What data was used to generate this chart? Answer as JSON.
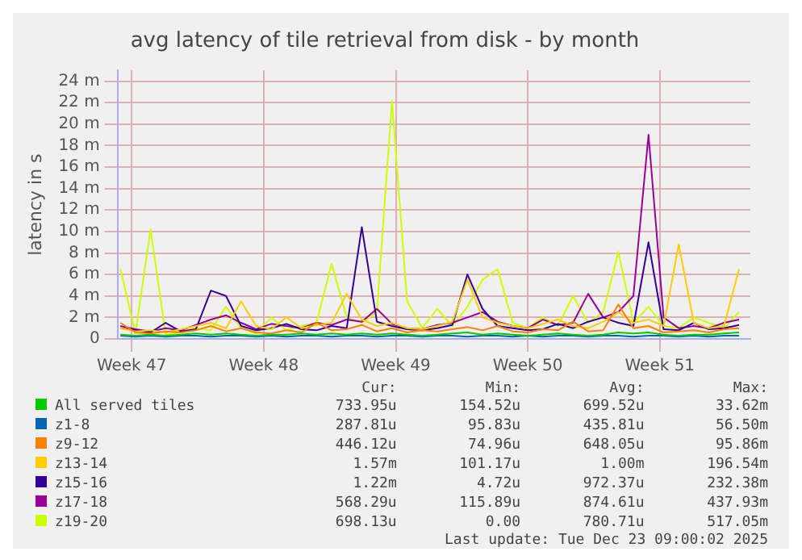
{
  "chart_data": {
    "type": "line",
    "title": "avg latency of tile retrieval from disk - by month",
    "ylabel": "latency in s",
    "x": [
      "2025-11-16T09:36",
      "2025-11-17T04:48",
      "2025-11-18T00:00",
      "2025-11-18T19:12",
      "2025-11-19T14:24",
      "2025-11-20T09:36",
      "2025-11-21T04:48",
      "2025-11-22T00:00",
      "2025-11-22T19:12",
      "2025-11-23T14:24",
      "2025-11-24T09:36",
      "2025-11-25T04:48",
      "2025-11-26T00:00",
      "2025-11-26T19:12",
      "2025-11-27T14:24",
      "2025-11-28T09:36",
      "2025-11-29T04:48",
      "2025-11-30T00:00",
      "2025-11-30T19:12",
      "2025-12-01T14:24",
      "2025-12-02T09:36",
      "2025-12-03T04:48",
      "2025-12-04T00:00",
      "2025-12-04T19:12",
      "2025-12-05T14:24",
      "2025-12-06T09:36",
      "2025-12-07T04:48",
      "2025-12-08T00:00",
      "2025-12-08T19:12",
      "2025-12-09T14:24",
      "2025-12-10T09:36",
      "2025-12-11T04:48",
      "2025-12-12T00:00",
      "2025-12-12T19:12",
      "2025-12-13T14:24",
      "2025-12-14T09:36",
      "2025-12-15T04:48",
      "2025-12-16T00:00",
      "2025-12-16T19:12",
      "2025-12-17T14:24",
      "2025-12-18T09:36",
      "2025-12-19T04:48"
    ],
    "series": [
      {
        "name": "All served tiles",
        "color": "#00cc00",
        "values": [
          0.4,
          0.3,
          0.4,
          0.3,
          0.4,
          0.5,
          0.4,
          0.5,
          0.4,
          0.3,
          0.4,
          0.4,
          0.5,
          0.4,
          0.5,
          0.4,
          0.5,
          0.4,
          0.5,
          0.4,
          0.3,
          0.4,
          0.5,
          0.6,
          0.4,
          0.5,
          0.4,
          0.3,
          0.4,
          0.5,
          0.4,
          0.3,
          0.4,
          0.6,
          0.5,
          0.6,
          0.4,
          0.3,
          0.4,
          0.4,
          0.5,
          0.6
        ]
      },
      {
        "name": "z1-8",
        "color": "#0066b3",
        "values": [
          0.3,
          0.2,
          0.3,
          0.2,
          0.3,
          0.3,
          0.2,
          0.3,
          0.3,
          0.2,
          0.3,
          0.2,
          0.3,
          0.3,
          0.2,
          0.3,
          0.3,
          0.2,
          0.3,
          0.3,
          0.2,
          0.3,
          0.3,
          0.2,
          0.3,
          0.3,
          0.2,
          0.3,
          0.2,
          0.3,
          0.3,
          0.2,
          0.3,
          0.3,
          0.2,
          0.3,
          0.3,
          0.2,
          0.3,
          0.2,
          0.3,
          0.3
        ]
      },
      {
        "name": "z9-12",
        "color": "#ff8000",
        "values": [
          1.5,
          0.6,
          0.5,
          0.7,
          0.6,
          0.8,
          1.2,
          0.7,
          1.0,
          0.6,
          0.5,
          0.8,
          0.6,
          1.5,
          0.8,
          0.9,
          1.3,
          0.7,
          1.0,
          0.6,
          0.8,
          0.7,
          0.9,
          1.1,
          0.8,
          1.2,
          0.7,
          0.6,
          0.9,
          0.8,
          1.6,
          0.7,
          0.8,
          3.2,
          1.0,
          1.2,
          0.6,
          0.7,
          0.8,
          0.6,
          0.9,
          1.0
        ]
      },
      {
        "name": "z13-14",
        "color": "#ffcc00",
        "values": [
          1.0,
          0.7,
          0.8,
          0.6,
          0.9,
          1.2,
          1.5,
          1.0,
          3.5,
          1.2,
          0.9,
          2.0,
          1.0,
          1.3,
          1.5,
          4.2,
          1.8,
          1.2,
          1.5,
          1.0,
          0.9,
          1.2,
          1.6,
          5.5,
          2.0,
          1.5,
          1.2,
          1.0,
          1.4,
          1.8,
          1.2,
          1.0,
          1.6,
          2.5,
          1.5,
          1.8,
          1.2,
          8.8,
          1.5,
          1.0,
          1.2,
          6.5
        ]
      },
      {
        "name": "z15-16",
        "color": "#330099",
        "values": [
          1.0,
          0.8,
          0.6,
          1.5,
          0.7,
          0.9,
          4.5,
          4.0,
          1.2,
          0.8,
          1.0,
          1.4,
          0.9,
          0.8,
          1.2,
          1.0,
          10.4,
          1.6,
          1.2,
          0.9,
          0.8,
          1.0,
          1.3,
          6.0,
          2.8,
          1.2,
          1.0,
          0.8,
          0.9,
          1.4,
          1.0,
          1.6,
          2.0,
          1.5,
          1.2,
          9.0,
          0.9,
          0.8,
          1.5,
          0.9,
          1.0,
          1.3
        ]
      },
      {
        "name": "z17-18",
        "color": "#990099",
        "values": [
          1.2,
          0.9,
          0.7,
          1.0,
          0.8,
          1.3,
          1.8,
          2.2,
          1.5,
          0.9,
          1.4,
          1.2,
          1.0,
          1.5,
          1.3,
          1.8,
          1.6,
          2.8,
          1.4,
          1.0,
          0.9,
          1.3,
          1.5,
          2.0,
          2.5,
          1.6,
          1.2,
          1.0,
          1.8,
          1.3,
          1.5,
          4.2,
          2.0,
          2.5,
          4.0,
          19.0,
          2.0,
          1.0,
          1.2,
          1.0,
          1.5,
          1.8
        ]
      },
      {
        "name": "z19-20",
        "color": "#ccff00",
        "values": [
          6.5,
          0.5,
          10.2,
          0.4,
          0.6,
          1.0,
          0.8,
          3.0,
          1.0,
          0.5,
          2.0,
          0.8,
          1.2,
          1.5,
          7.0,
          2.0,
          1.5,
          2.5,
          22.2,
          3.5,
          1.0,
          2.8,
          1.2,
          3.0,
          5.5,
          6.5,
          1.5,
          1.0,
          2.0,
          1.2,
          4.0,
          1.5,
          2.5,
          8.1,
          1.5,
          3.0,
          1.2,
          1.0,
          2.0,
          1.5,
          1.0,
          2.5
        ]
      }
    ],
    "xlim": [
      "2025-11-16T06:00",
      "2025-12-19T19:12"
    ],
    "xticks": [
      {
        "value": "2025-11-17",
        "label": "Week 47"
      },
      {
        "value": "2025-11-24",
        "label": "Week 48"
      },
      {
        "value": "2025-12-01",
        "label": "Week 49"
      },
      {
        "value": "2025-12-08",
        "label": "Week 50"
      },
      {
        "value": "2025-12-15",
        "label": "Week 51"
      }
    ],
    "ylim": [
      0,
      25
    ],
    "yticks": [
      0,
      {
        "value": 2,
        "label": "2 m"
      },
      {
        "value": 4,
        "label": "4 m"
      },
      {
        "value": 6,
        "label": "6 m"
      },
      {
        "value": 8,
        "label": "8 m"
      },
      {
        "value": 10,
        "label": "10 m"
      },
      {
        "value": 12,
        "label": "12 m"
      },
      {
        "value": 14,
        "label": "14 m"
      },
      {
        "value": 16,
        "label": "16 m"
      },
      {
        "value": 18,
        "label": "18 m"
      },
      {
        "value": 20,
        "label": "20 m"
      },
      {
        "value": 22,
        "label": "22 m"
      },
      {
        "value": 24,
        "label": "24 m"
      }
    ],
    "grid": true,
    "legend": "bottom",
    "annotations": [
      "Cur:",
      "Min:",
      "Avg:",
      "Max:",
      "733.95u",
      "154.52u",
      "699.52u",
      "33.62m",
      "287.81u",
      "95.83u",
      "435.81u",
      "56.50m",
      "446.12u",
      "74.96u",
      "648.05u",
      "95.86m",
      "1.57m",
      "101.17u",
      "1.00m",
      "196.54m",
      "1.22m",
      "4.72u",
      "972.37u",
      "232.38m",
      "568.29u",
      "115.89u",
      "874.61u",
      "437.93m",
      "698.13u",
      "0.00",
      "780.71u",
      "517.05m",
      "Last update: Tue Dec 23 09:00:02 2025"
    ]
  }
}
